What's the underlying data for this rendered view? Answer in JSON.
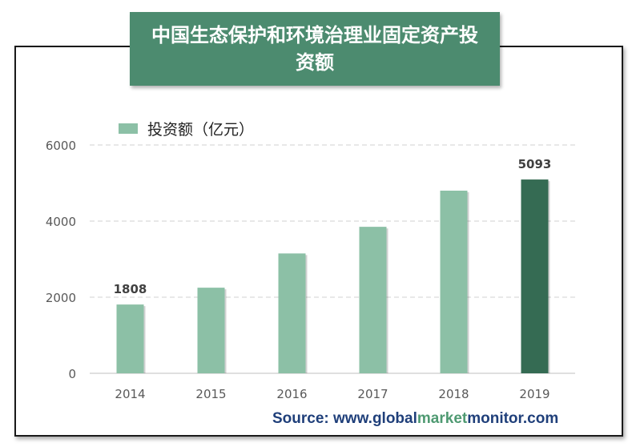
{
  "chart_data": {
    "type": "bar",
    "title": "中国生态保护和环境治理业固定资产投资额",
    "categories": [
      "2014",
      "2015",
      "2016",
      "2017",
      "2018",
      "2019"
    ],
    "series": [
      {
        "name": "投资额（亿元）",
        "values": [
          1808,
          2250,
          3150,
          3850,
          4800,
          5093
        ]
      }
    ],
    "ylim": [
      0,
      6000
    ],
    "yticks": [
      "0",
      "2000",
      "4000",
      "6000"
    ],
    "data_labels": [
      {
        "category": "2014",
        "text": "1808"
      },
      {
        "category": "2019",
        "text": "5093"
      }
    ],
    "grid": true,
    "legend_position": "top-left",
    "colors": {
      "bar": "#8cc0a6",
      "highlight_bar": "#356b53",
      "title_background": "#4c8b6f"
    }
  },
  "source": {
    "prefix": "Source: www.",
    "parts": [
      {
        "text": "global",
        "accent": false
      },
      {
        "text": "market",
        "accent": true
      },
      {
        "text": "monitor",
        "accent": false
      },
      {
        "text": ".com",
        "accent": false
      }
    ]
  }
}
